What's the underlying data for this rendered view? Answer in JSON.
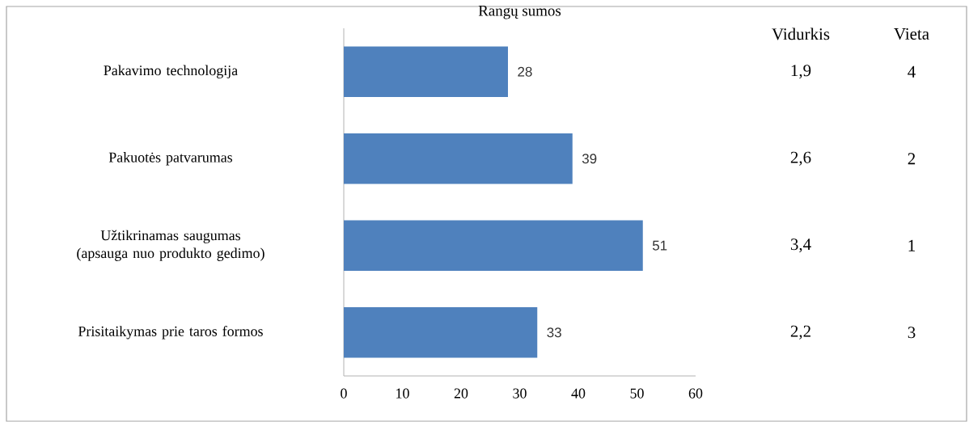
{
  "chart_data": {
    "type": "bar",
    "orientation": "horizontal",
    "title": "Rangų sumos",
    "categories": [
      "Pakavimo technologija",
      "Pakuotės patvarumas",
      "Užtikrinamas saugumas (apsauga nuo produkto gedimo)",
      "Prisitaikymas prie taros formos"
    ],
    "values": [
      28,
      39,
      51,
      33
    ],
    "color": "#4f81bd",
    "xlim": [
      0,
      60
    ],
    "xticks": [
      0,
      10,
      20,
      30,
      40,
      50,
      60
    ],
    "grid": false,
    "data_labels": true,
    "annotations": [
      "Vidurkis",
      "Vieta",
      "1,9",
      "4",
      "2,6",
      "2",
      "3,4",
      "1",
      "2,2",
      "3"
    ]
  }
}
